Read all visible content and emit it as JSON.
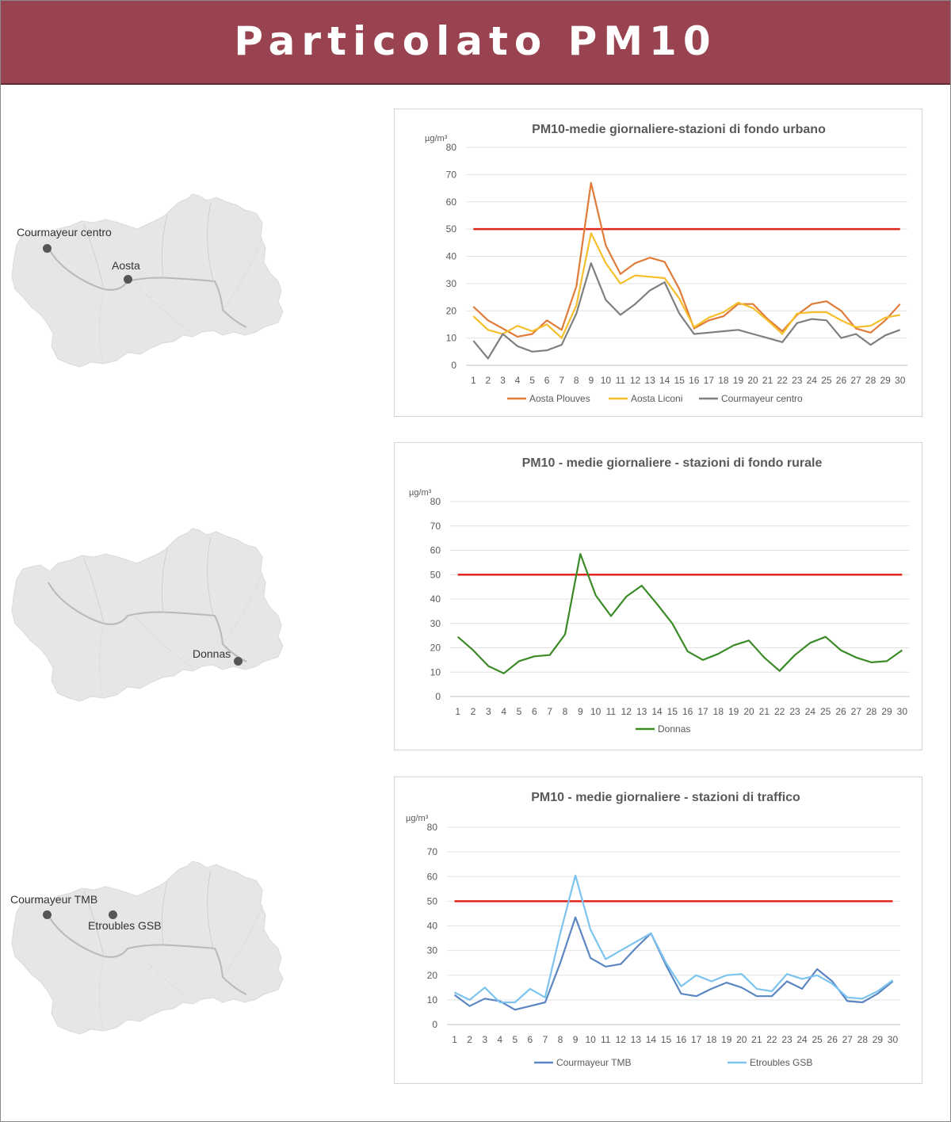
{
  "header": {
    "title": "Particolato PM10"
  },
  "maps": [
    {
      "stations": [
        {
          "name": "Courmayeur centro"
        },
        {
          "name": "Aosta"
        }
      ]
    },
    {
      "stations": [
        {
          "name": "Donnas"
        }
      ]
    },
    {
      "stations": [
        {
          "name": "Courmayeur TMB"
        },
        {
          "name": "Etroubles GSB"
        }
      ]
    }
  ],
  "colors": {
    "header_bg": "#9a4350",
    "limit_line": "#e0251b",
    "map_fill": "#e6e6e6",
    "river": "#b9b9b9"
  },
  "chart_data": [
    {
      "type": "line",
      "title": "PM10-medie giornaliere-stazioni di fondo urbano",
      "ylabel": "µg/m³",
      "xlabel": "",
      "ylim": [
        0,
        80
      ],
      "yticks": [
        0,
        10,
        20,
        30,
        40,
        50,
        60,
        70,
        80
      ],
      "x": [
        1,
        2,
        3,
        4,
        5,
        6,
        7,
        8,
        9,
        10,
        11,
        12,
        13,
        14,
        15,
        16,
        17,
        18,
        19,
        20,
        21,
        22,
        23,
        24,
        25,
        26,
        27,
        28,
        29,
        30
      ],
      "grid": true,
      "legend": "bottom",
      "limit": {
        "value": 50,
        "color": "#e0251b"
      },
      "series": [
        {
          "name": "Aosta Plouves",
          "color": "#e07b39",
          "values": [
            21.5,
            16.5,
            13.5,
            10.5,
            11.5,
            16.5,
            13,
            29,
            67,
            44,
            33.5,
            37.5,
            39.5,
            38,
            28,
            13.5,
            16.5,
            18,
            22.5,
            22.5,
            17,
            12.5,
            18.5,
            22.5,
            23.5,
            20,
            13.5,
            12,
            16.5,
            22.5
          ]
        },
        {
          "name": "Aosta Liconi",
          "color": "#f5be2a",
          "values": [
            18,
            13,
            11.5,
            14.5,
            12.5,
            15,
            10,
            22,
            48.5,
            37.5,
            30,
            33,
            32.5,
            32,
            24.5,
            14,
            17.5,
            19.5,
            23,
            21,
            16.5,
            11.5,
            19,
            19.5,
            19.5,
            16.5,
            14,
            14.5,
            17.5,
            18.5
          ]
        },
        {
          "name": "Courmayeur centro",
          "color": "#7f7f7f",
          "values": [
            9,
            2.5,
            11.5,
            7,
            5,
            5.5,
            7.5,
            19,
            37.5,
            24,
            18.5,
            22.5,
            27.5,
            30.5,
            19,
            11.5,
            12,
            12.5,
            13,
            11.5,
            10,
            8.5,
            15.5,
            17,
            16.5,
            10,
            11.5,
            7.5,
            11,
            13
          ]
        }
      ]
    },
    {
      "type": "line",
      "title": "PM10 - medie giornaliere - stazioni di fondo rurale",
      "ylabel": "µg/m³",
      "xlabel": "",
      "ylim": [
        0,
        80
      ],
      "yticks": [
        0,
        10,
        20,
        30,
        40,
        50,
        60,
        70,
        80
      ],
      "x": [
        1,
        2,
        3,
        4,
        5,
        6,
        7,
        8,
        9,
        10,
        11,
        12,
        13,
        14,
        15,
        16,
        17,
        18,
        19,
        20,
        21,
        22,
        23,
        24,
        25,
        26,
        27,
        28,
        29,
        30
      ],
      "grid": true,
      "legend": "bottom",
      "limit": {
        "value": 50,
        "color": "#e0251b"
      },
      "series": [
        {
          "name": "Donnas",
          "color": "#3a8a26",
          "values": [
            24.5,
            19,
            12.5,
            9.5,
            14.5,
            16.5,
            17,
            25.5,
            58.5,
            41.5,
            33,
            41,
            45.5,
            38,
            30,
            18.5,
            15,
            17.5,
            21,
            23,
            16,
            10.5,
            17,
            22,
            24.5,
            19,
            16,
            14,
            14.5,
            19
          ]
        }
      ]
    },
    {
      "type": "line",
      "title": "PM10 - medie giornaliere - stazioni di traffico",
      "ylabel": "µg/m³",
      "xlabel": "",
      "ylim": [
        0,
        80
      ],
      "yticks": [
        0,
        10,
        20,
        30,
        40,
        50,
        60,
        70,
        80
      ],
      "x": [
        1,
        2,
        3,
        4,
        5,
        6,
        7,
        8,
        9,
        10,
        11,
        12,
        13,
        14,
        15,
        16,
        17,
        18,
        19,
        20,
        21,
        22,
        23,
        24,
        25,
        26,
        27,
        28,
        29,
        30
      ],
      "grid": true,
      "legend": "bottom",
      "limit": {
        "value": 50,
        "color": "#e0251b"
      },
      "series": [
        {
          "name": "Courmayeur TMB",
          "color": "#5b86c1",
          "values": [
            12,
            7.5,
            10.5,
            9.5,
            6,
            7.5,
            9,
            25,
            43.5,
            27,
            23.5,
            24.5,
            31,
            37,
            24,
            12.5,
            11.5,
            14.5,
            17,
            15,
            11.5,
            11.5,
            17.5,
            14.5,
            22.5,
            17.5,
            9.5,
            9,
            12.5,
            17.5
          ]
        },
        {
          "name": "Etroubles GSB",
          "color": "#7cc4ef",
          "values": [
            13,
            10,
            15,
            9,
            9,
            14.5,
            11,
            37,
            60.5,
            38.5,
            26.5,
            30,
            33.5,
            37,
            25,
            15.5,
            20,
            17.5,
            20,
            20.5,
            14.5,
            13.5,
            20.5,
            18.5,
            20,
            16.5,
            11,
            10.5,
            13.5,
            18
          ]
        }
      ]
    }
  ]
}
